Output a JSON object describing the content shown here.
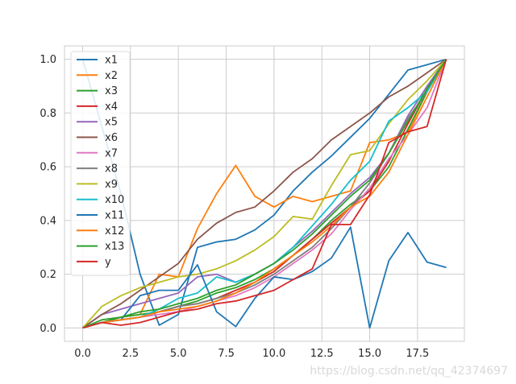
{
  "chart_data": {
    "type": "line",
    "title": "",
    "xlabel": "",
    "ylabel": "",
    "xlim": [
      -0.95,
      19.95
    ],
    "ylim": [
      -0.05,
      1.05
    ],
    "x_ticks": [
      0,
      2.5,
      5,
      7.5,
      10,
      12.5,
      15,
      17.5
    ],
    "x_tick_labels": [
      "0.0",
      "2.5",
      "5.0",
      "7.5",
      "10.0",
      "12.5",
      "15.0",
      "17.5"
    ],
    "y_ticks": [
      0,
      0.2,
      0.4,
      0.6,
      0.8,
      1.0
    ],
    "y_tick_labels": [
      "0.0",
      "0.2",
      "0.4",
      "0.6",
      "0.8",
      "1.0"
    ],
    "grid": true,
    "legend_position": "upper-left",
    "x": [
      0,
      1,
      2,
      3,
      4,
      5,
      6,
      7,
      8,
      9,
      10,
      11,
      12,
      13,
      14,
      15,
      16,
      17,
      18,
      19
    ],
    "series": [
      {
        "name": "x1",
        "color": "#1f77b4",
        "values": [
          1.0,
          0.75,
          0.5,
          0.2,
          0.01,
          0.05,
          0.3,
          0.32,
          0.33,
          0.365,
          0.42,
          0.51,
          0.58,
          0.64,
          0.71,
          0.78,
          0.87,
          0.96,
          0.98,
          1.0
        ]
      },
      {
        "name": "x2",
        "color": "#ff7f0e",
        "values": [
          0,
          0.02,
          0.04,
          0.05,
          0.2,
          0.19,
          0.37,
          0.5,
          0.605,
          0.49,
          0.45,
          0.49,
          0.47,
          0.49,
          0.51,
          0.69,
          0.7,
          0.73,
          0.88,
          1.0
        ]
      },
      {
        "name": "x3",
        "color": "#2ca02c",
        "values": [
          0,
          0.02,
          0.04,
          0.05,
          0.06,
          0.08,
          0.1,
          0.13,
          0.15,
          0.18,
          0.22,
          0.27,
          0.33,
          0.4,
          0.46,
          0.51,
          0.6,
          0.74,
          0.88,
          1.0
        ]
      },
      {
        "name": "x4",
        "color": "#d62728",
        "values": [
          0,
          0.02,
          0.03,
          0.04,
          0.06,
          0.08,
          0.09,
          0.11,
          0.14,
          0.17,
          0.21,
          0.27,
          0.33,
          0.39,
          0.45,
          0.51,
          0.62,
          0.76,
          0.89,
          1.0
        ]
      },
      {
        "name": "x5",
        "color": "#9467bd",
        "values": [
          0,
          0.05,
          0.07,
          0.09,
          0.11,
          0.13,
          0.19,
          0.2,
          0.17,
          0.2,
          0.24,
          0.3,
          0.36,
          0.43,
          0.5,
          0.56,
          0.65,
          0.79,
          0.9,
          1.0
        ]
      },
      {
        "name": "x6",
        "color": "#8c564b",
        "values": [
          0,
          0.05,
          0.09,
          0.14,
          0.19,
          0.24,
          0.33,
          0.39,
          0.43,
          0.45,
          0.51,
          0.58,
          0.63,
          0.7,
          0.75,
          0.8,
          0.86,
          0.9,
          0.95,
          1.0
        ]
      },
      {
        "name": "x7",
        "color": "#e377c2",
        "values": [
          0,
          0.02,
          0.03,
          0.04,
          0.05,
          0.06,
          0.08,
          0.1,
          0.12,
          0.15,
          0.19,
          0.24,
          0.29,
          0.35,
          0.44,
          0.52,
          0.63,
          0.72,
          0.82,
          1.0
        ]
      },
      {
        "name": "x8",
        "color": "#7f7f7f",
        "values": [
          0,
          0.02,
          0.03,
          0.04,
          0.06,
          0.08,
          0.09,
          0.11,
          0.13,
          0.16,
          0.2,
          0.25,
          0.3,
          0.37,
          0.45,
          0.54,
          0.65,
          0.78,
          0.88,
          1.0
        ]
      },
      {
        "name": "x9",
        "color": "#bcbd22",
        "values": [
          0,
          0.08,
          0.12,
          0.15,
          0.17,
          0.19,
          0.2,
          0.22,
          0.25,
          0.29,
          0.34,
          0.415,
          0.405,
          0.53,
          0.645,
          0.66,
          0.76,
          0.85,
          0.92,
          1.0
        ]
      },
      {
        "name": "x10",
        "color": "#17becf",
        "values": [
          0,
          0.02,
          0.03,
          0.04,
          0.07,
          0.11,
          0.13,
          0.19,
          0.17,
          0.2,
          0.24,
          0.3,
          0.38,
          0.46,
          0.55,
          0.62,
          0.77,
          0.82,
          0.88,
          1.0
        ]
      },
      {
        "name": "x11",
        "color": "#1f77b4",
        "values": [
          0,
          0.02,
          0.03,
          0.12,
          0.14,
          0.14,
          0.235,
          0.06,
          0.005,
          0.11,
          0.19,
          0.18,
          0.21,
          0.26,
          0.375,
          0.0,
          0.25,
          0.355,
          0.245,
          0.225
        ]
      },
      {
        "name": "x12",
        "color": "#ff7f0e",
        "values": [
          0,
          0.02,
          0.03,
          0.04,
          0.06,
          0.07,
          0.08,
          0.1,
          0.13,
          0.17,
          0.22,
          0.27,
          0.32,
          0.38,
          0.45,
          0.49,
          0.58,
          0.72,
          0.86,
          1.0
        ]
      },
      {
        "name": "x13",
        "color": "#2ca02c",
        "values": [
          0,
          0.03,
          0.04,
          0.06,
          0.07,
          0.09,
          0.11,
          0.14,
          0.16,
          0.2,
          0.24,
          0.29,
          0.35,
          0.42,
          0.49,
          0.55,
          0.65,
          0.77,
          0.89,
          1.0
        ]
      },
      {
        "name": "y",
        "color": "#d62728",
        "values": [
          0,
          0.02,
          0.01,
          0.02,
          0.04,
          0.06,
          0.07,
          0.09,
          0.1,
          0.12,
          0.14,
          0.18,
          0.22,
          0.385,
          0.385,
          0.495,
          0.69,
          0.73,
          0.75,
          1.0
        ]
      }
    ]
  },
  "watermark": "https://blog.csdn.net/qq_42374697"
}
